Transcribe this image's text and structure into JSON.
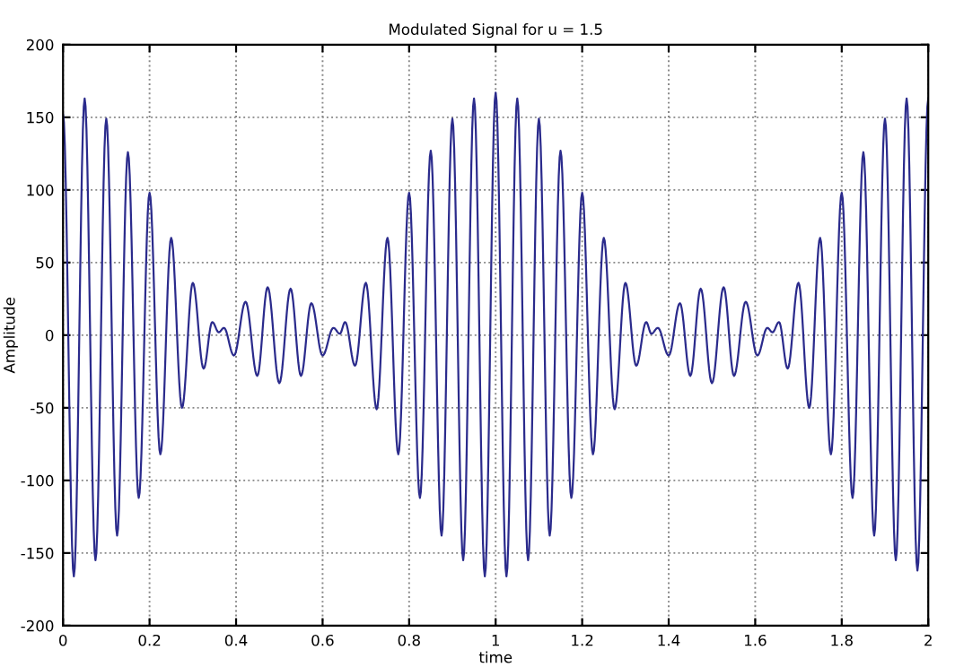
{
  "chart_data": {
    "type": "line",
    "title": "Modulated Signal for u = 1.5",
    "xlabel": "time",
    "ylabel": "Amplitude",
    "xlim": [
      0,
      2
    ],
    "ylim": [
      -200,
      200
    ],
    "xticks": [
      0,
      0.2,
      0.4,
      0.6,
      0.8,
      1,
      1.2,
      1.4,
      1.6,
      1.8,
      2
    ],
    "yticks": [
      -200,
      -150,
      -100,
      -50,
      0,
      50,
      100,
      150,
      200
    ],
    "grid": true,
    "line_style": "solid",
    "marker": "none",
    "series": [
      {
        "color": "#2b2b8c",
        "x": [
          0,
          0.025,
          0.05,
          0.075,
          0.1,
          0.125,
          0.15,
          0.175,
          0.2,
          0.225,
          0.25,
          0.275,
          0.3,
          0.325,
          0.345,
          0.36,
          0.372,
          0.395,
          0.422,
          0.449,
          0.473,
          0.5,
          0.526,
          0.55,
          0.574,
          0.6,
          0.625,
          0.64,
          0.652,
          0.675,
          0.7,
          0.725,
          0.75,
          0.775,
          0.8,
          0.825,
          0.85,
          0.875,
          0.9,
          0.925,
          0.95,
          0.975,
          1.0,
          1.025,
          1.05,
          1.075,
          1.1,
          1.125,
          1.15,
          1.175,
          1.2,
          1.225,
          1.25,
          1.275,
          1.3,
          1.325,
          1.348,
          1.36,
          1.375,
          1.4,
          1.426,
          1.45,
          1.474,
          1.5,
          1.527,
          1.551,
          1.578,
          1.605,
          1.628,
          1.64,
          1.655,
          1.675,
          1.7,
          1.725,
          1.75,
          1.775,
          1.8,
          1.825,
          1.85,
          1.875,
          1.9,
          1.925,
          1.95,
          1.975,
          2.0
        ],
        "values": [
          152,
          -166,
          163,
          -155,
          149,
          -138,
          126,
          -112,
          98,
          -82,
          67,
          -50,
          36,
          -23,
          9,
          2,
          5,
          -14,
          23,
          -28,
          33,
          -33,
          32,
          -28,
          22,
          -14,
          5,
          1,
          9,
          -21,
          36,
          -51,
          67,
          -82,
          98,
          -112,
          127,
          -138,
          149,
          -155,
          163,
          -166,
          167,
          -166,
          163,
          -155,
          149,
          -138,
          127,
          -112,
          98,
          -82,
          67,
          -51,
          36,
          -21,
          9,
          1,
          5,
          -14,
          22,
          -28,
          32,
          -33,
          33,
          -28,
          23,
          -14,
          5,
          2,
          9,
          -23,
          36,
          -50,
          67,
          -82,
          98,
          -112,
          126,
          -138,
          149,
          -155,
          163,
          -162,
          163
        ]
      }
    ]
  }
}
